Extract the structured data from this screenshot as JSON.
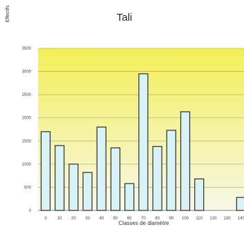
{
  "chart_data": {
    "type": "bar",
    "title": "Tali",
    "xlabel": "Classes de diamètre",
    "ylabel": "Effectifs",
    "categories": [
      "0",
      "10",
      "20",
      "30",
      "40",
      "50",
      "60",
      "70",
      "80",
      "90",
      "100",
      "110",
      "120",
      "130",
      "140"
    ],
    "values": [
      1700,
      1400,
      1000,
      820,
      1800,
      1350,
      580,
      2950,
      1380,
      1730,
      2130,
      680,
      0,
      0,
      280
    ],
    "ylim": [
      0,
      3500
    ],
    "yticks": [
      0,
      500,
      1000,
      1500,
      2000,
      2500,
      3000,
      3500
    ],
    "grid": true,
    "colors": {
      "bar_fill": "#d9f2f6",
      "bar_stroke": "#2a2a2a",
      "plot_top": "#f3ef58",
      "plot_bottom": "#f7f7e8"
    }
  }
}
